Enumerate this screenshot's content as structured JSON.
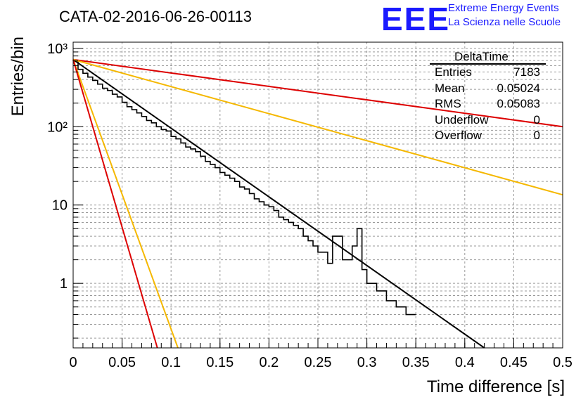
{
  "figure": {
    "title": "CATA-02-2016-06-26-00113",
    "logo": {
      "mark": "EEE",
      "line1": "Extreme Energy Events",
      "line2": "La Scienza nelle Scuole"
    }
  },
  "stats_box": {
    "title": "DeltaTime",
    "rows": [
      {
        "label": "Entries",
        "value": "7183"
      },
      {
        "label": "Mean",
        "value": "0.05024"
      },
      {
        "label": "RMS",
        "value": "0.05083"
      },
      {
        "label": "Underflow",
        "value": "0"
      },
      {
        "label": "Overflow",
        "value": "0"
      }
    ]
  },
  "chart_data": {
    "type": "line",
    "title": "CATA-02-2016-06-26-00113",
    "xlabel": "Time difference [s]",
    "ylabel": "Entries/bin",
    "xlim": [
      0,
      0.5
    ],
    "ylim": [
      0.15,
      1200
    ],
    "yscale": "log",
    "grid": true,
    "x_ticks": [
      "0",
      "0.05",
      "0.1",
      "0.15",
      "0.2",
      "0.25",
      "0.3",
      "0.35",
      "0.4",
      "0.45",
      "0.5"
    ],
    "y_ticks": [
      "1",
      "10",
      "10²",
      "10³"
    ],
    "histogram": {
      "name": "DeltaTime",
      "bin_width": 0.005,
      "color": "#000000",
      "values": [
        680,
        540,
        480,
        430,
        390,
        350,
        310,
        290,
        260,
        240,
        205,
        180,
        165,
        150,
        135,
        120,
        112,
        100,
        92,
        88,
        75,
        70,
        62,
        55,
        52,
        48,
        42,
        36,
        33,
        30,
        26,
        24,
        22,
        20,
        17,
        16,
        14,
        12,
        11,
        10,
        9.5,
        8.5,
        7,
        6.5,
        6,
        5.5,
        5,
        4,
        3.5,
        3,
        2.5,
        2.5,
        1.8,
        4,
        4,
        2,
        2,
        3,
        5,
        1.5,
        1,
        1,
        0.8,
        0.8,
        0.6,
        0.6,
        0.5,
        0.5,
        0.4,
        0.4
      ]
    },
    "fit_curves": [
      {
        "color": "#000000",
        "x": [
          0.0,
          0.42
        ],
        "y": [
          720,
          0.15
        ]
      },
      {
        "color": "#dd0000",
        "x": [
          0.0,
          0.5
        ],
        "y": [
          720,
          100
        ]
      },
      {
        "color": "#f5b800",
        "x": [
          0.0,
          0.5
        ],
        "y": [
          720,
          13.5
        ]
      },
      {
        "color": "#f5b800",
        "x": [
          0.0,
          0.107
        ],
        "y": [
          720,
          0.15
        ]
      },
      {
        "color": "#dd0000",
        "x": [
          0.0,
          0.086
        ],
        "y": [
          720,
          0.15
        ]
      }
    ]
  }
}
